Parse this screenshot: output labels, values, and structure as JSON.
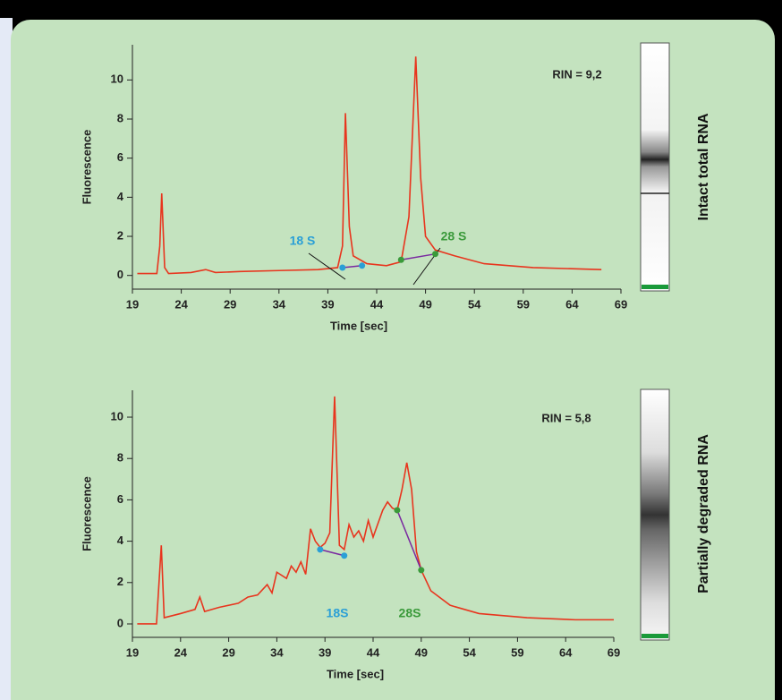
{
  "chart_data": [
    {
      "type": "line",
      "xlabel": "Time [sec]",
      "ylabel": "Fluorescence",
      "annotation": "RIN = 9,2",
      "side_label": "Intact total RNA",
      "xlim": [
        19,
        69
      ],
      "ylim": [
        -0.7,
        11.8
      ],
      "xticks": [
        19,
        24,
        29,
        34,
        39,
        44,
        49,
        54,
        59,
        64,
        69
      ],
      "yticks": [
        0,
        2,
        4,
        6,
        8,
        10
      ],
      "x": [
        19.5,
        21.5,
        21.8,
        22,
        22.3,
        22.7,
        25,
        26.5,
        27.5,
        30,
        34,
        38,
        40,
        40.5,
        40.8,
        41.2,
        41.6,
        43,
        45,
        46.5,
        47.3,
        48,
        48.5,
        49,
        50,
        52,
        55,
        60,
        67
      ],
      "series": [
        {
          "color": "#e8351e",
          "values": [
            0.1,
            0.1,
            1.5,
            4.2,
            0.4,
            0.1,
            0.15,
            0.3,
            0.15,
            0.2,
            0.25,
            0.3,
            0.4,
            1.5,
            8.3,
            2.5,
            1.0,
            0.6,
            0.5,
            0.7,
            3.0,
            11.2,
            5.0,
            2.0,
            1.3,
            1.0,
            0.6,
            0.4,
            0.3
          ]
        }
      ],
      "markers": [
        {
          "label": "18 S",
          "color": "#2a9fd6",
          "x": [
            40.5,
            42.5
          ],
          "y": [
            0.4,
            0.5
          ]
        },
        {
          "label": "28 S",
          "color": "#3a9a3a",
          "x": [
            46.5,
            50
          ],
          "y": [
            0.8,
            1.1
          ]
        }
      ]
    },
    {
      "type": "line",
      "xlabel": "Time [sec]",
      "ylabel": "Fluorescence",
      "annotation": "RIN = 5,8",
      "side_label": "Partially degraded RNA",
      "xlim": [
        19,
        69
      ],
      "ylim": [
        -0.65,
        11.3
      ],
      "xticks": [
        19,
        24,
        29,
        34,
        39,
        44,
        49,
        54,
        59,
        64,
        69
      ],
      "yticks": [
        0,
        2,
        4,
        6,
        8,
        10
      ],
      "x": [
        19.5,
        21.5,
        22,
        22.3,
        24,
        25.5,
        26,
        26.5,
        28,
        30,
        31,
        32,
        33,
        33.5,
        34,
        35,
        35.5,
        36,
        36.5,
        37,
        37.5,
        38,
        38.5,
        39,
        39.5,
        40,
        40.5,
        41,
        41.5,
        42,
        42.5,
        43,
        43.5,
        44,
        45,
        45.5,
        46,
        46.5,
        47,
        47.5,
        48,
        48.5,
        49,
        50,
        52,
        55,
        60,
        65,
        69
      ],
      "series": [
        {
          "color": "#e8351e",
          "values": [
            0,
            0,
            3.8,
            0.3,
            0.5,
            0.7,
            1.3,
            0.6,
            0.8,
            1.0,
            1.3,
            1.4,
            1.9,
            1.5,
            2.5,
            2.2,
            2.8,
            2.5,
            3.0,
            2.4,
            4.6,
            4.0,
            3.7,
            3.9,
            4.4,
            11.0,
            3.8,
            3.6,
            4.8,
            4.2,
            4.5,
            4.0,
            5.0,
            4.2,
            5.5,
            5.9,
            5.6,
            5.5,
            6.5,
            7.8,
            6.5,
            3.5,
            2.6,
            1.6,
            0.9,
            0.5,
            0.3,
            0.2,
            0.2
          ]
        }
      ],
      "markers": [
        {
          "label": "18S",
          "color": "#2a9fd6",
          "x": [
            38.5,
            41
          ],
          "y": [
            3.6,
            3.3
          ]
        },
        {
          "label": "28S",
          "color": "#3a9a3a",
          "x": [
            46.5,
            49
          ],
          "y": [
            5.5,
            2.6
          ]
        }
      ]
    }
  ]
}
